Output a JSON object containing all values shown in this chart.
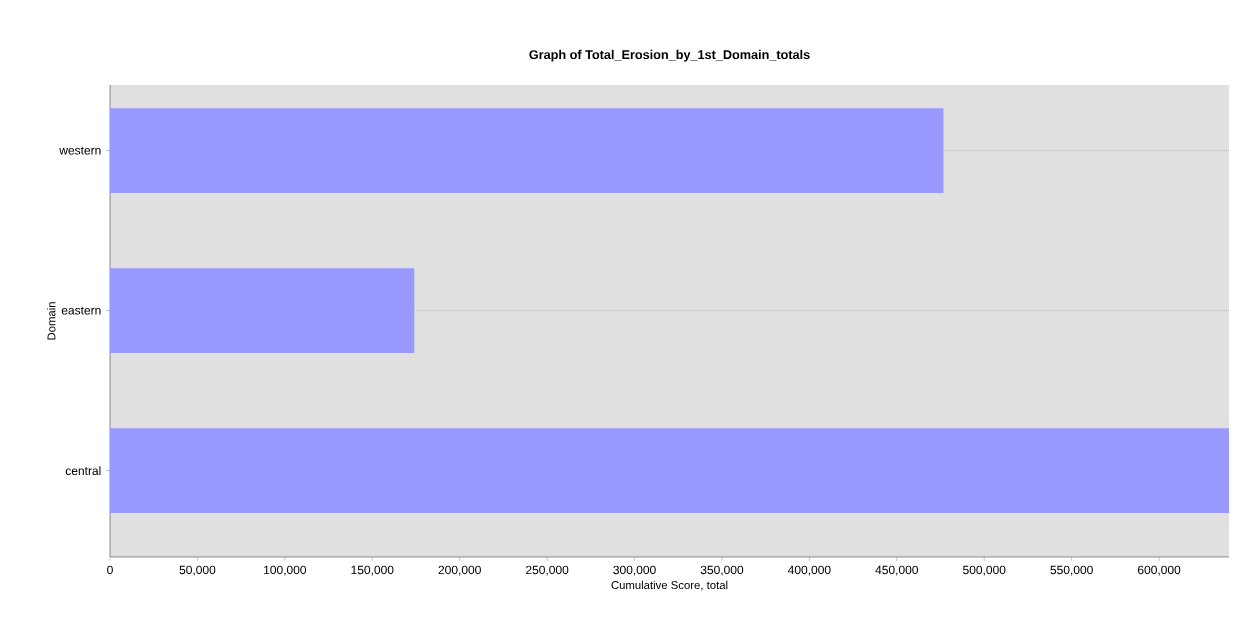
{
  "chart_data": {
    "type": "bar",
    "orientation": "horizontal",
    "title": "Graph of Total_Erosion_by_1st_Domain_totals",
    "xlabel": "Cumulative Score, total",
    "ylabel": "Domain",
    "categories": [
      "western",
      "eastern",
      "central"
    ],
    "values": [
      476700,
      174000,
      640000
    ],
    "color": "#9999ff",
    "xlim": [
      0,
      640000
    ],
    "xticks": [
      0,
      {
        "value": 50000,
        "label": "50,000"
      },
      {
        "value": 100000,
        "label": "100,000"
      },
      {
        "value": 150000,
        "label": "150,000"
      },
      {
        "value": 200000,
        "label": "200,000"
      },
      {
        "value": 250000,
        "label": "250,000"
      },
      {
        "value": 300000,
        "label": "300,000"
      },
      {
        "value": 350000,
        "label": "350,000"
      },
      {
        "value": 400000,
        "label": "400,000"
      },
      {
        "value": 450000,
        "label": "450,000"
      },
      {
        "value": 500000,
        "label": "500,000"
      },
      {
        "value": 550000,
        "label": "550,000"
      },
      {
        "value": 600000,
        "label": "600,000"
      }
    ],
    "grid": "y"
  }
}
